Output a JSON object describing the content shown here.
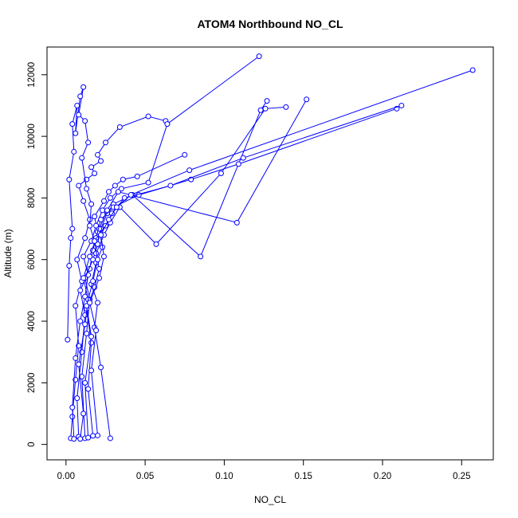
{
  "chart_data": {
    "type": "line",
    "title": "ATOM4 Northbound NO_CL",
    "xlabel": "NO_CL",
    "ylabel": "Altitude (m)",
    "xlim": [
      -0.012,
      0.27
    ],
    "ylim": [
      -500,
      12900
    ],
    "xticks": [
      0.0,
      0.05,
      0.1,
      0.15,
      0.2,
      0.25
    ],
    "xtick_labels": [
      "0.00",
      "0.05",
      "0.10",
      "0.15",
      "0.20",
      "0.25"
    ],
    "yticks": [
      0,
      2000,
      4000,
      6000,
      8000,
      10000,
      12000
    ],
    "ytick_labels": [
      "0",
      "2000",
      "4000",
      "6000",
      "8000",
      "10000",
      "12000"
    ],
    "grid": false,
    "legend": "none",
    "marker": "open-circle",
    "color": "#0000ff",
    "series": [
      {
        "x": [
          0.003,
          0.004,
          0.006,
          0.008,
          0.006,
          0.01,
          0.007,
          0.012,
          0.015,
          0.011,
          0.008,
          0.013,
          0.018,
          0.016,
          0.022,
          0.02,
          0.025,
          0.034,
          0.052,
          0.063
        ],
        "y": [
          200,
          900,
          2100,
          3200,
          4500,
          5300,
          6000,
          6700,
          7300,
          7900,
          8400,
          8600,
          8800,
          9000,
          9200,
          9400,
          9800,
          10300,
          10650,
          10500
        ]
      },
      {
        "x": [
          0.008,
          0.007,
          0.01,
          0.012,
          0.009,
          0.015,
          0.017,
          0.02,
          0.018,
          0.024,
          0.027,
          0.031,
          0.036,
          0.045,
          0.075
        ],
        "y": [
          250,
          1500,
          3000,
          4200,
          5000,
          5700,
          6300,
          6900,
          7400,
          7900,
          8200,
          8400,
          8600,
          8700,
          9400
        ]
      },
      {
        "x": [
          0.005,
          0.004,
          0.006,
          0.009,
          0.012,
          0.014,
          0.011,
          0.016,
          0.019,
          0.023,
          0.028,
          0.035,
          0.052,
          0.064,
          0.122
        ],
        "y": [
          180,
          1200,
          2800,
          4000,
          4800,
          5500,
          6100,
          6600,
          7100,
          7600,
          8000,
          8300,
          8500,
          10400,
          12600
        ]
      },
      {
        "x": [
          0.012,
          0.01,
          0.013,
          0.015,
          0.012,
          0.017,
          0.02,
          0.022,
          0.026,
          0.03,
          0.042,
          0.085,
          0.123,
          0.127
        ],
        "y": [
          200,
          2200,
          3600,
          4700,
          5400,
          6000,
          6500,
          7000,
          7500,
          7800,
          8100,
          6100,
          10850,
          11150
        ]
      },
      {
        "x": [
          0.017,
          0.014,
          0.016,
          0.013,
          0.018,
          0.021,
          0.019,
          0.024,
          0.028,
          0.034,
          0.057,
          0.098,
          0.126,
          0.139
        ],
        "y": [
          280,
          1800,
          3300,
          4400,
          5100,
          5700,
          6200,
          6800,
          7200,
          7700,
          6500,
          8800,
          10900,
          10950
        ]
      },
      {
        "x": [
          0.028,
          0.022,
          0.018,
          0.02,
          0.016,
          0.019,
          0.023,
          0.021,
          0.026,
          0.033,
          0.108,
          0.152
        ],
        "y": [
          200,
          2500,
          3800,
          4600,
          5200,
          5900,
          6400,
          7000,
          7600,
          8200,
          7200,
          11200
        ]
      },
      {
        "x": [
          0.009,
          0.011,
          0.008,
          0.012,
          0.014,
          0.011,
          0.015,
          0.019,
          0.022,
          0.03,
          0.046,
          0.079,
          0.109,
          0.209
        ],
        "y": [
          180,
          1000,
          2600,
          3900,
          4700,
          5400,
          6100,
          6700,
          7300,
          7700,
          8100,
          8600,
          9100,
          10900
        ]
      },
      {
        "x": [
          0.014,
          0.012,
          0.016,
          0.013,
          0.017,
          0.02,
          0.018,
          0.025,
          0.029,
          0.037,
          0.066,
          0.112,
          0.212
        ],
        "y": [
          220,
          2000,
          3500,
          4500,
          5300,
          6000,
          6600,
          7100,
          7500,
          8000,
          8400,
          9300,
          11000
        ]
      },
      {
        "x": [
          0.02,
          0.016,
          0.019,
          0.015,
          0.021,
          0.024,
          0.022,
          0.027,
          0.032,
          0.041,
          0.078,
          0.257
        ],
        "y": [
          290,
          2400,
          3700,
          4600,
          5400,
          6100,
          6800,
          7300,
          7700,
          8100,
          8900,
          12150
        ]
      },
      {
        "x": [
          0.001,
          0.002,
          0.003,
          0.004,
          0.002,
          0.005,
          0.004,
          0.007,
          0.006,
          0.009,
          0.011,
          0.008,
          0.012,
          0.014,
          0.01,
          0.013,
          0.016,
          0.015,
          0.018
        ],
        "y": [
          3400,
          5800,
          6700,
          7000,
          8600,
          9500,
          10400,
          11000,
          10100,
          11300,
          11600,
          10700,
          10500,
          9800,
          9300,
          8300,
          7800,
          7100,
          6600
        ]
      }
    ]
  }
}
